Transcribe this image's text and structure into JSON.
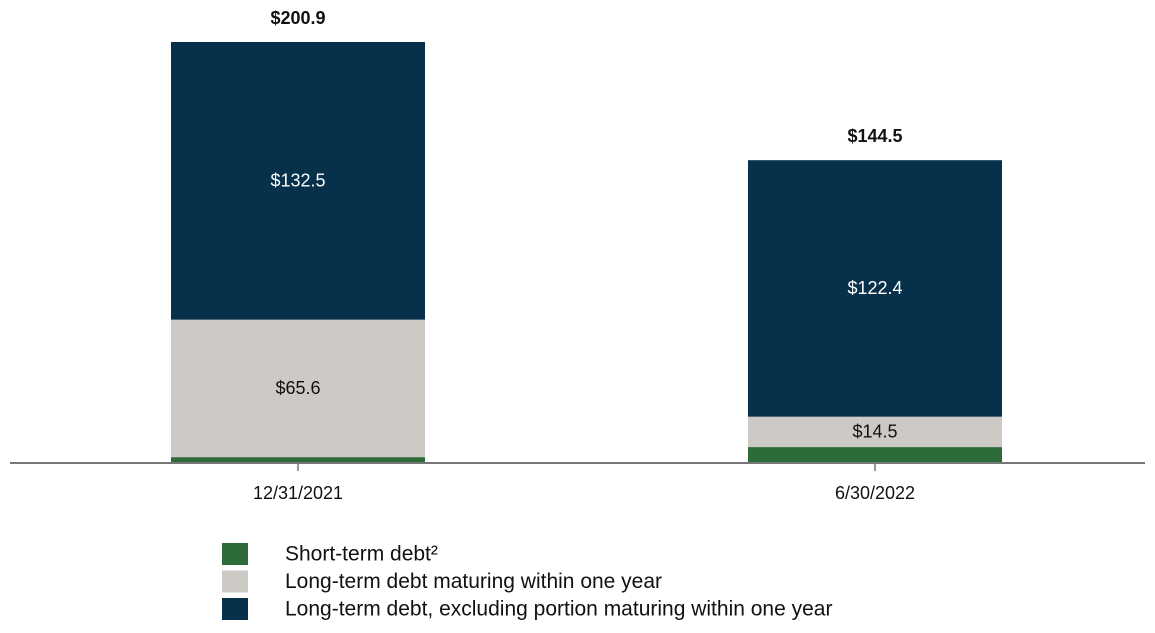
{
  "chart_data": {
    "type": "stacked-bar",
    "categories": [
      "12/31/2021",
      "6/30/2022"
    ],
    "series": [
      {
        "name": "Short-term debt²",
        "color": "#2e6b3a",
        "values": [
          2.8,
          7.6
        ],
        "value_labels": [
          null,
          null
        ],
        "label_color": "#ffffff"
      },
      {
        "name": "Long-term debt maturing within one year",
        "color": "#cdc9c4",
        "values": [
          65.6,
          14.5
        ],
        "value_labels": [
          "$65.6",
          "$14.5"
        ],
        "label_color": "#111111"
      },
      {
        "name": "Long-term debt, excluding portion maturing within one year",
        "color": "#07304b",
        "values": [
          132.5,
          122.4
        ],
        "value_labels": [
          "$132.5",
          "$122.4"
        ],
        "label_color": "#ffffff"
      }
    ],
    "totals": [
      200.9,
      144.5
    ],
    "total_labels": [
      "$200.9",
      "$144.5"
    ]
  }
}
